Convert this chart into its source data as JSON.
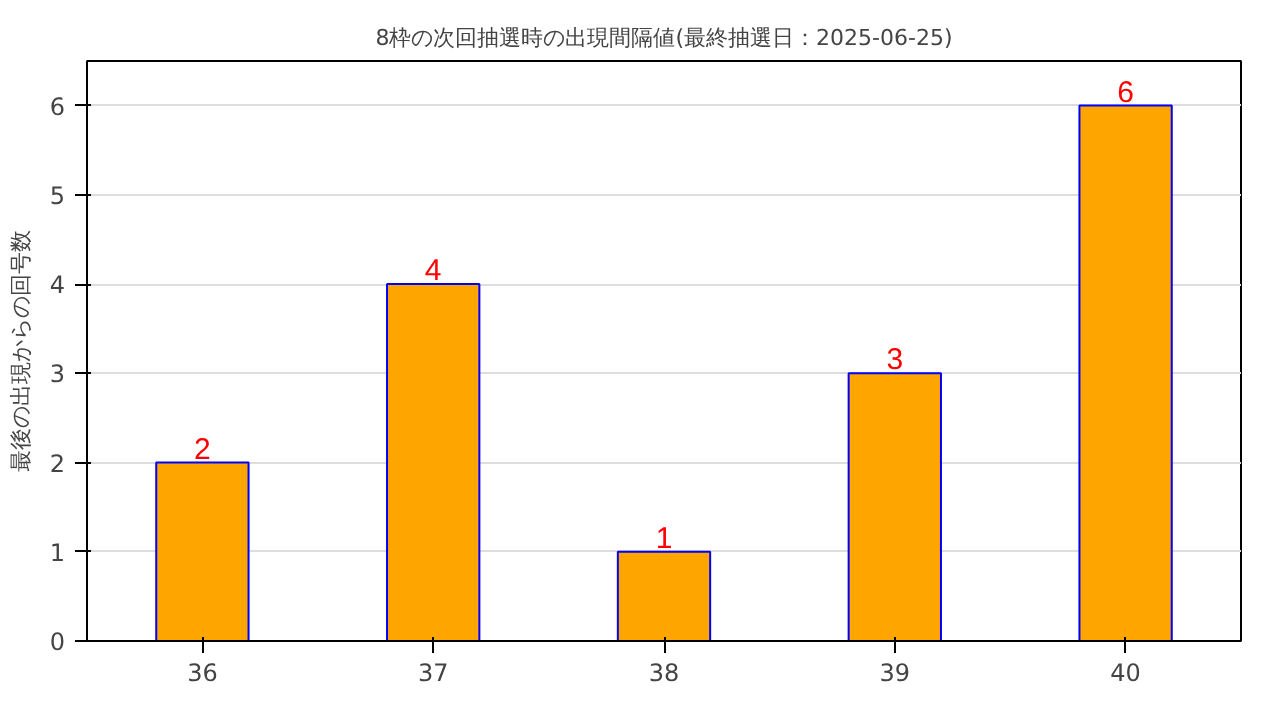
{
  "chart_data": {
    "type": "bar",
    "title": "8枠の次回抽選時の出現間隔値(最終抽選日：2025-06-25)",
    "ylabel": "最後の出現からの回号数",
    "categories": [
      "36",
      "37",
      "38",
      "39",
      "40"
    ],
    "values": [
      2,
      4,
      1,
      3,
      6
    ],
    "color": "#ffa500",
    "ylim": [
      0,
      6.5
    ],
    "yticks": [
      0,
      1,
      2,
      3,
      4,
      5,
      6
    ],
    "grid": "y",
    "data_labels": true
  }
}
